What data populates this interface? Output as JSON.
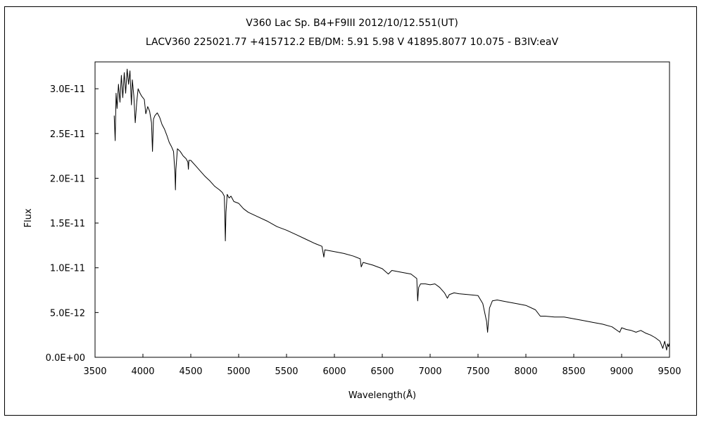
{
  "chart_data": {
    "type": "line",
    "title": "V360 Lac    Sp. B4+F9III    2012/10/12.551(UT)",
    "subtitle": "LACV360 225021.77 +415712.2 EB/DM: 5.91 5.98 V 41895.8077 10.075 - B3IV:eaV",
    "xlabel": "Wavelength(Å)",
    "ylabel": "Flux",
    "xlim": [
      3500,
      9500
    ],
    "ylim": [
      0,
      3.3e-11
    ],
    "xticks": [
      3500,
      4000,
      4500,
      5000,
      5500,
      6000,
      6500,
      7000,
      7500,
      8000,
      8500,
      9000,
      9500
    ],
    "xtick_labels": [
      "3500",
      "4000",
      "4500",
      "5000",
      "5500",
      "6000",
      "6500",
      "7000",
      "7500",
      "8000",
      "8500",
      "9000",
      "9500"
    ],
    "yticks": [
      0,
      5e-12,
      1e-11,
      1.5e-11,
      2e-11,
      2.5e-11,
      3e-11
    ],
    "ytick_labels": [
      "0.0E+00",
      "5.0E-12",
      "1.0E-11",
      "1.5E-11",
      "2.0E-11",
      "2.5E-11",
      "3.0E-11"
    ],
    "grid": false,
    "series": [
      {
        "x": [
          3700,
          3710,
          3720,
          3730,
          3745,
          3760,
          3775,
          3790,
          3805,
          3820,
          3835,
          3850,
          3865,
          3880,
          3890,
          3905,
          3920,
          3935,
          3950,
          3970,
          3985,
          4000,
          4015,
          4030,
          4050,
          4070,
          4090,
          4100,
          4110,
          4125,
          4150,
          4175,
          4200,
          4225,
          4250,
          4275,
          4300,
          4320,
          4335,
          4340,
          4345,
          4360,
          4390,
          4420,
          4450,
          4470,
          4475,
          4480,
          4500,
          4550,
          4600,
          4650,
          4700,
          4750,
          4800,
          4830,
          4850,
          4855,
          4861,
          4868,
          4880,
          4900,
          4920,
          4950,
          5000,
          5050,
          5100,
          5200,
          5300,
          5400,
          5500,
          5600,
          5700,
          5800,
          5870,
          5890,
          5900,
          5950,
          6000,
          6100,
          6200,
          6270,
          6280,
          6300,
          6400,
          6500,
          6563,
          6600,
          6700,
          6800,
          6860,
          6870,
          6880,
          6900,
          6950,
          7000,
          7050,
          7100,
          7150,
          7180,
          7200,
          7250,
          7300,
          7400,
          7500,
          7550,
          7590,
          7600,
          7605,
          7620,
          7650,
          7700,
          7800,
          7900,
          8000,
          8100,
          8150,
          8200,
          8300,
          8400,
          8500,
          8600,
          8700,
          8800,
          8900,
          8980,
          9000,
          9050,
          9100,
          9150,
          9200,
          9250,
          9300,
          9350,
          9400,
          9430,
          9450,
          9470,
          9480,
          9490,
          9500
        ],
        "values": [
          2.7e-11,
          2.42e-11,
          2.95e-11,
          2.78e-11,
          3.05e-11,
          2.85e-11,
          3.15e-11,
          2.9e-11,
          3.18e-11,
          2.95e-11,
          3.22e-11,
          3.05e-11,
          3.2e-11,
          2.82e-11,
          3.1e-11,
          2.92e-11,
          2.62e-11,
          2.85e-11,
          3e-11,
          2.95e-11,
          2.92e-11,
          2.9e-11,
          2.88e-11,
          2.72e-11,
          2.8e-11,
          2.75e-11,
          2.62e-11,
          2.3e-11,
          2.66e-11,
          2.7e-11,
          2.73e-11,
          2.68e-11,
          2.6e-11,
          2.55e-11,
          2.48e-11,
          2.4e-11,
          2.35e-11,
          2.3e-11,
          2.05e-11,
          1.87e-11,
          2.1e-11,
          2.33e-11,
          2.3e-11,
          2.25e-11,
          2.22e-11,
          2.18e-11,
          2.1e-11,
          2.2e-11,
          2.2e-11,
          2.14e-11,
          2.08e-11,
          2.02e-11,
          1.97e-11,
          1.91e-11,
          1.87e-11,
          1.84e-11,
          1.8e-11,
          1.6e-11,
          1.3e-11,
          1.62e-11,
          1.82e-11,
          1.78e-11,
          1.8e-11,
          1.74e-11,
          1.72e-11,
          1.66e-11,
          1.62e-11,
          1.57e-11,
          1.52e-11,
          1.46e-11,
          1.42e-11,
          1.37e-11,
          1.32e-11,
          1.27e-11,
          1.24e-11,
          1.12e-11,
          1.2e-11,
          1.19e-11,
          1.18e-11,
          1.16e-11,
          1.13e-11,
          1.1e-11,
          1.01e-11,
          1.06e-11,
          1.03e-11,
          9.9e-12,
          9.3e-12,
          9.7e-12,
          9.5e-12,
          9.3e-12,
          8.8e-12,
          6.3e-12,
          7.8e-12,
          8.2e-12,
          8.2e-12,
          8.1e-12,
          8.2e-12,
          7.8e-12,
          7.2e-12,
          6.6e-12,
          7e-12,
          7.2e-12,
          7.1e-12,
          7e-12,
          6.9e-12,
          6e-12,
          4e-12,
          2.8e-12,
          3.5e-12,
          5.5e-12,
          6.3e-12,
          6.4e-12,
          6.2e-12,
          6e-12,
          5.8e-12,
          5.3e-12,
          4.6e-12,
          4.6e-12,
          4.5e-12,
          4.5e-12,
          4.3e-12,
          4.1e-12,
          3.9e-12,
          3.7e-12,
          3.4e-12,
          2.8e-12,
          3.3e-12,
          3.1e-12,
          3e-12,
          2.8e-12,
          3e-12,
          2.7e-12,
          2.5e-12,
          2.2e-12,
          1.8e-12,
          1e-12,
          1.8e-12,
          8e-13,
          1.5e-12,
          1.2e-12,
          1.6e-12
        ]
      }
    ]
  }
}
